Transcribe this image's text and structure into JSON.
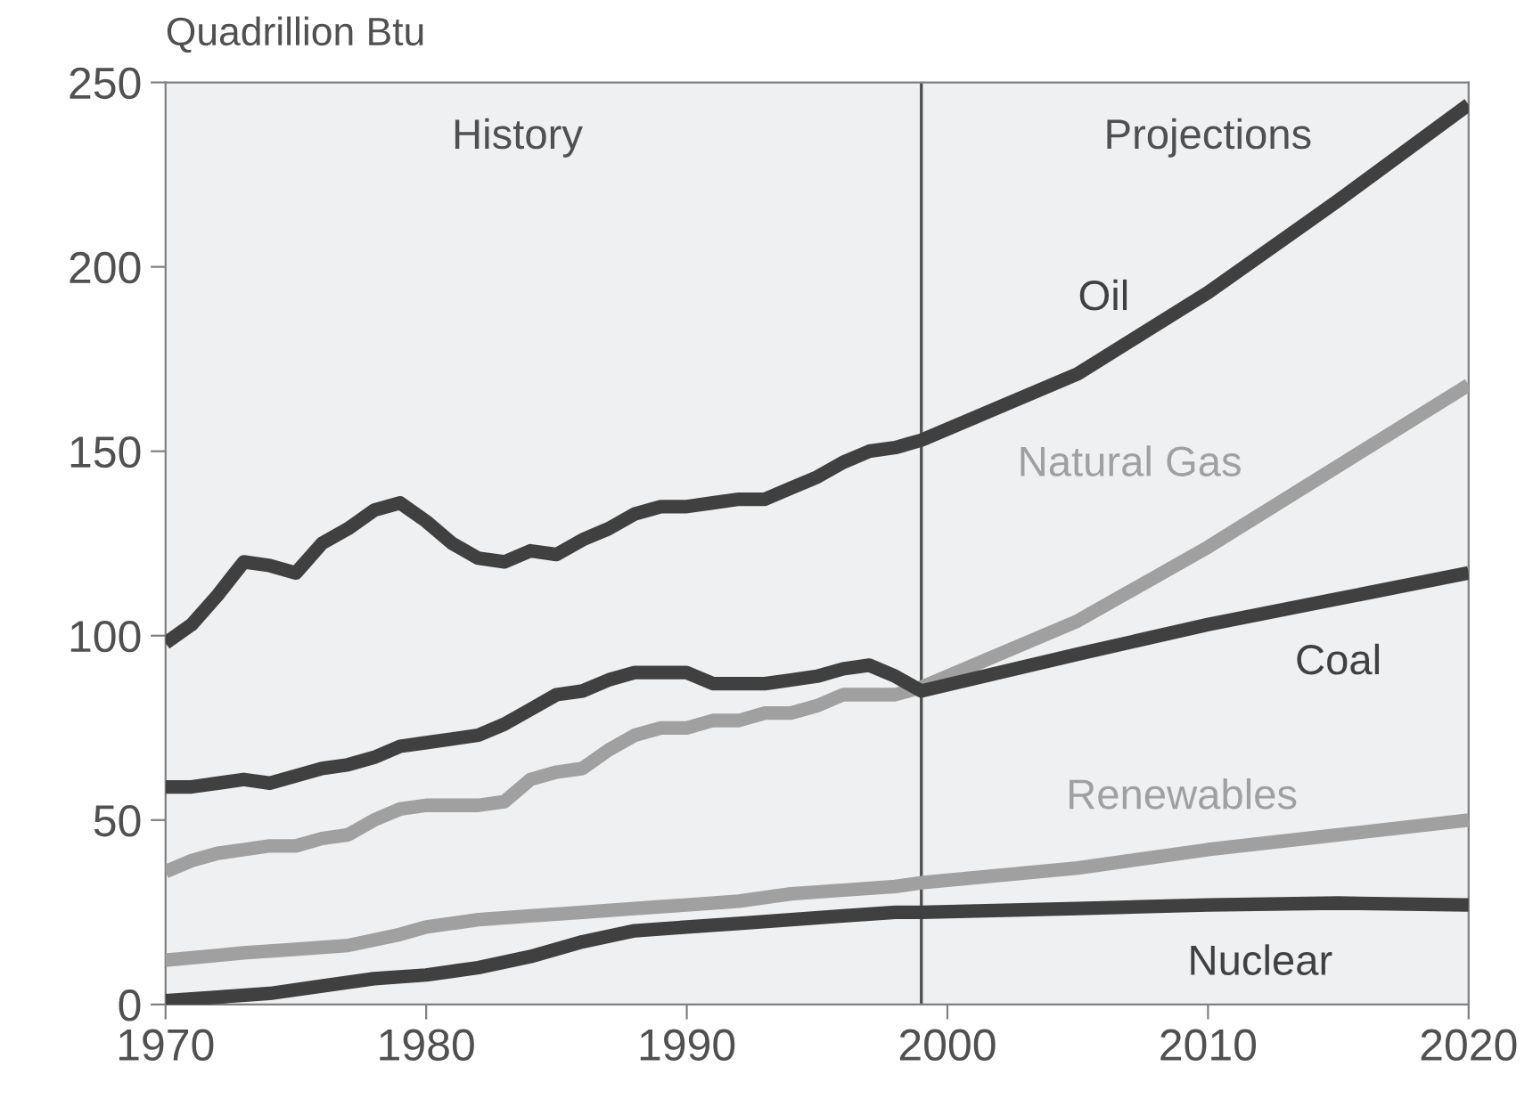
{
  "chart_data": {
    "type": "line",
    "ylabel": "Quadrillion Btu",
    "xlim": [
      1970,
      2020
    ],
    "xticks": [
      1970,
      1980,
      1990,
      2000,
      2010,
      2020
    ],
    "ylim": [
      0,
      250
    ],
    "yticks": [
      0,
      50,
      100,
      150,
      200,
      250
    ],
    "grid": false,
    "legend": false,
    "marker": "none",
    "line_style": "solid",
    "annotations": [
      "History",
      "Projections"
    ],
    "ref_lines": [
      {
        "axis": "x",
        "value": 1999,
        "label": null,
        "color": "#505050"
      }
    ],
    "series": [
      {
        "name": "Oil",
        "color": "#404040",
        "x": [
          1970,
          1971,
          1972,
          1973,
          1974,
          1975,
          1976,
          1977,
          1978,
          1979,
          1980,
          1981,
          1982,
          1983,
          1984,
          1985,
          1986,
          1987,
          1988,
          1989,
          1990,
          1991,
          1992,
          1993,
          1994,
          1995,
          1996,
          1997,
          1998,
          1999,
          2005,
          2010,
          2015,
          2020
        ],
        "values": [
          98,
          103,
          111,
          120,
          119,
          117,
          125,
          129,
          134,
          136,
          131,
          125,
          121,
          120,
          123,
          122,
          126,
          129,
          133,
          135,
          135,
          136,
          137,
          137,
          140,
          143,
          147,
          150,
          151,
          153,
          171,
          193,
          218,
          244
        ]
      },
      {
        "name": "Natural Gas",
        "color": "#a0a0a0",
        "x": [
          1970,
          1971,
          1972,
          1973,
          1974,
          1975,
          1976,
          1977,
          1978,
          1979,
          1980,
          1981,
          1982,
          1983,
          1984,
          1985,
          1986,
          1987,
          1988,
          1989,
          1990,
          1991,
          1992,
          1993,
          1994,
          1995,
          1996,
          1997,
          1998,
          1999,
          2005,
          2010,
          2015,
          2020
        ],
        "values": [
          36,
          39,
          41,
          42,
          43,
          43,
          45,
          46,
          50,
          53,
          54,
          54,
          54,
          55,
          61,
          63,
          64,
          69,
          73,
          75,
          75,
          77,
          77,
          79,
          79,
          81,
          84,
          84,
          84,
          86,
          104,
          124,
          146,
          168
        ]
      },
      {
        "name": "Coal",
        "color": "#404040",
        "x": [
          1970,
          1971,
          1972,
          1973,
          1974,
          1975,
          1976,
          1977,
          1978,
          1979,
          1980,
          1981,
          1982,
          1983,
          1984,
          1985,
          1986,
          1987,
          1988,
          1989,
          1990,
          1991,
          1992,
          1993,
          1994,
          1995,
          1996,
          1997,
          1998,
          1999,
          2005,
          2010,
          2015,
          2020
        ],
        "values": [
          59,
          59,
          60,
          61,
          60,
          62,
          64,
          65,
          67,
          70,
          71,
          72,
          73,
          76,
          80,
          84,
          85,
          88,
          90,
          90,
          90,
          87,
          87,
          87,
          88,
          89,
          91,
          92,
          89,
          85,
          95,
          103,
          110,
          117
        ]
      },
      {
        "name": "Renewables",
        "color": "#a0a0a0",
        "x": [
          1970,
          1973,
          1975,
          1977,
          1979,
          1980,
          1982,
          1984,
          1986,
          1988,
          1990,
          1992,
          1994,
          1996,
          1998,
          1999,
          2005,
          2010,
          2015,
          2020
        ],
        "values": [
          12,
          14,
          15,
          16,
          19,
          21,
          23,
          24,
          25,
          26,
          27,
          28,
          30,
          31,
          32,
          33,
          37,
          42,
          46,
          50
        ]
      },
      {
        "name": "Nuclear",
        "color": "#404040",
        "x": [
          1970,
          1972,
          1974,
          1976,
          1978,
          1980,
          1982,
          1984,
          1986,
          1988,
          1990,
          1992,
          1994,
          1996,
          1998,
          1999,
          2005,
          2010,
          2015,
          2020
        ],
        "values": [
          1,
          2,
          3,
          5,
          7,
          8,
          10,
          13,
          17,
          20,
          21,
          22,
          23,
          24,
          25,
          25,
          26,
          27,
          27.5,
          27
        ]
      }
    ]
  }
}
